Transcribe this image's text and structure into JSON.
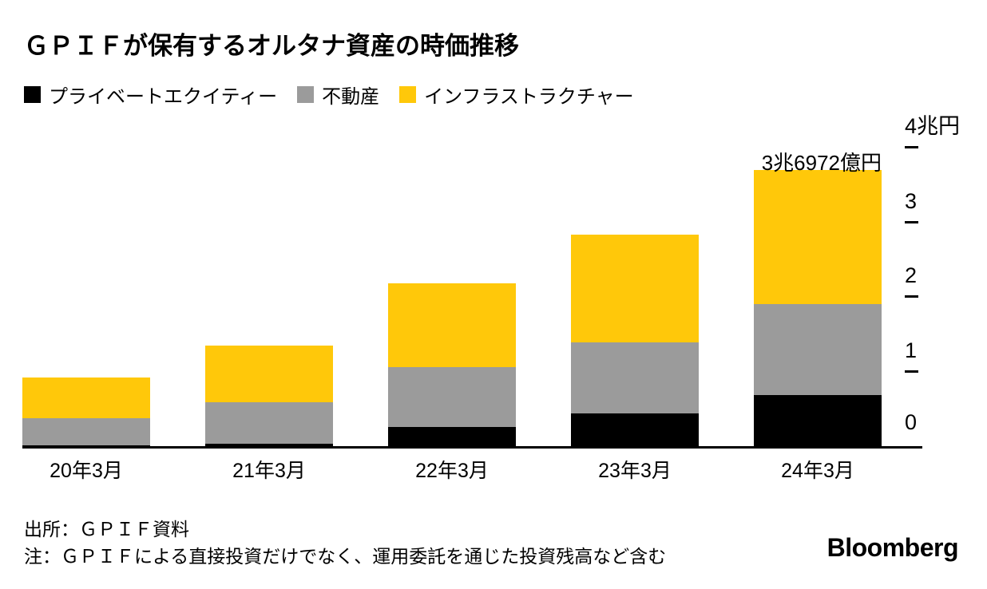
{
  "header": {
    "title": "ＧＰＩＦが保有するオルタナ資産の時価推移"
  },
  "legend": {
    "items": [
      {
        "label": "プライベートエクイティー",
        "color": "#000000"
      },
      {
        "label": "不動産",
        "color": "#9B9B9B"
      },
      {
        "label": "インフラストラクチャー",
        "color": "#FFC80A"
      }
    ]
  },
  "chart_data": {
    "type": "bar",
    "stacked": true,
    "title": "ＧＰＩＦが保有するオルタナ資産の時価推移",
    "unit": "兆円",
    "ylim": [
      0,
      4
    ],
    "grid": false,
    "legend_position": "top-left",
    "y_axis_side": "right",
    "categories": [
      "20年3月",
      "21年3月",
      "22年3月",
      "23年3月",
      "24年3月"
    ],
    "series": [
      {
        "name": "プライベートエクイティー",
        "color": "#000000",
        "values": [
          0.01,
          0.03,
          0.26,
          0.44,
          0.68
        ]
      },
      {
        "name": "不動産",
        "color": "#9B9B9B",
        "values": [
          0.36,
          0.56,
          0.8,
          0.95,
          1.22
        ]
      },
      {
        "name": "インフラストラクチャー",
        "color": "#FFC80A",
        "values": [
          0.55,
          0.76,
          1.12,
          1.45,
          1.8
        ]
      }
    ],
    "totals": [
      0.92,
      1.35,
      2.18,
      2.84,
      3.6972
    ],
    "y_ticks": [
      {
        "label": "4兆円",
        "value": 4
      },
      {
        "label": "3",
        "value": 3
      },
      {
        "label": "2",
        "value": 2
      },
      {
        "label": "1",
        "value": 1
      },
      {
        "label": "0",
        "value": 0
      }
    ],
    "annotation": {
      "text": "3兆6972億円",
      "category": "24年3月"
    }
  },
  "footer": {
    "source": "出所：ＧＰＩＦ資料",
    "note": "注：ＧＰＩＦによる直接投資だけでなく、運用委託を通じた投資残高など含む",
    "logo": "Bloomberg"
  }
}
